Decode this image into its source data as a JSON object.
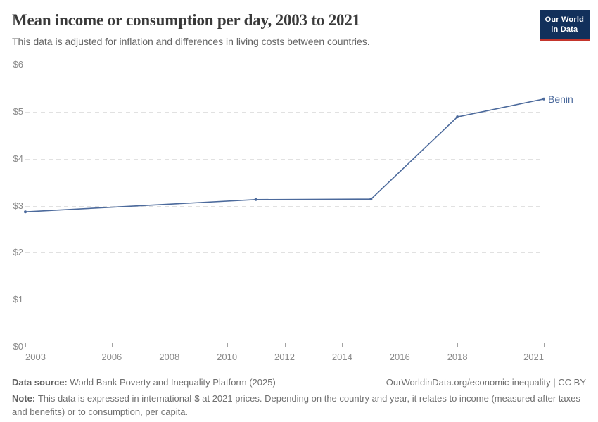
{
  "header": {
    "title": "Mean income or consumption per day, 2003 to 2021",
    "subtitle": "This data is adjusted for inflation and differences in living costs between countries.",
    "logo": {
      "line1": "Our World",
      "line2": "in Data",
      "bg_color": "#12305b",
      "stripe_color": "#c4352c"
    }
  },
  "chart_data": {
    "type": "line",
    "title": "Mean income or consumption per day, 2003 to 2021",
    "xlabel": "",
    "ylabel": "",
    "xlim": [
      2003,
      2021
    ],
    "ylim": [
      0,
      6
    ],
    "grid": "horizontal-dashed",
    "legend_position": "end-of-line",
    "x": [
      2003,
      2011,
      2015,
      2018,
      2021
    ],
    "series": [
      {
        "name": "Benin",
        "color": "#4c6a9c",
        "values": [
          2.87,
          3.13,
          3.14,
          4.89,
          5.27
        ]
      }
    ],
    "x_ticks": [
      2003,
      2006,
      2008,
      2010,
      2012,
      2014,
      2016,
      2018,
      2021
    ],
    "y_ticks": [
      {
        "value": 0,
        "label": "$0"
      },
      {
        "value": 1,
        "label": "$1"
      },
      {
        "value": 2,
        "label": "$2"
      },
      {
        "value": 3,
        "label": "$3"
      },
      {
        "value": 4,
        "label": "$4"
      },
      {
        "value": 5,
        "label": "$5"
      },
      {
        "value": 6,
        "label": "$6"
      }
    ],
    "grid_color": "#e1e1e1",
    "axis_color": "#a3a3a3",
    "tick_label_color": "#8b8b8b"
  },
  "footer": {
    "source_label": "Data source:",
    "source_text": "World Bank Poverty and Inequality Platform (2025)",
    "attribution": "OurWorldinData.org/economic-inequality | CC BY",
    "note_label": "Note:",
    "note_text": "This data is expressed in international-$ at 2021 prices. Depending on the country and year, it relates to income (measured after taxes and benefits) or to consumption, per capita."
  }
}
